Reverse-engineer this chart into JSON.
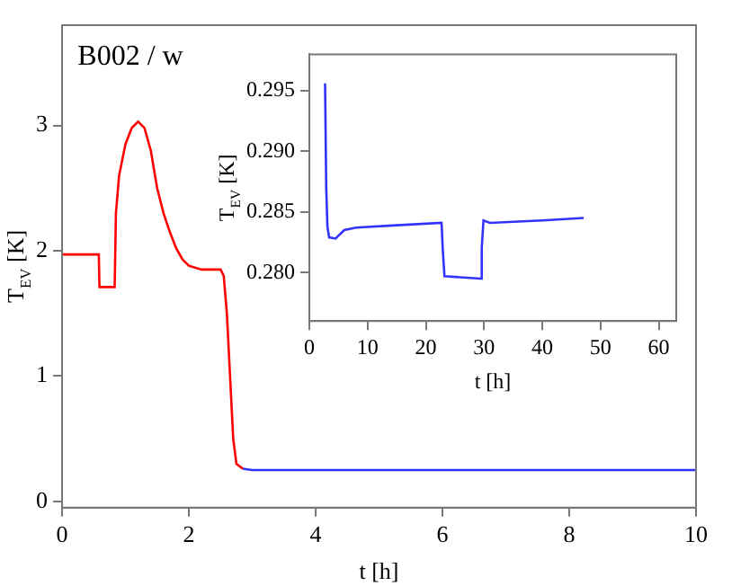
{
  "chart_data": [
    {
      "type": "line",
      "title": "B002 / w",
      "xlabel": "t [h]",
      "ylabel": "T$_{EV}$ [K]",
      "xlim": [
        0,
        10
      ],
      "ylim": [
        -0.05,
        3.8
      ],
      "xticks": [
        0,
        2,
        4,
        6,
        8,
        10
      ],
      "yticks": [
        0,
        1,
        2,
        3
      ],
      "series": [
        {
          "color": "#ff0000",
          "x": [
            0,
            0.58,
            0.59,
            0.83,
            0.85,
            0.9,
            1.0,
            1.1,
            1.2,
            1.3,
            1.4,
            1.5,
            1.6,
            1.7,
            1.8,
            1.9,
            2.0,
            2.2,
            2.5,
            2.55,
            2.6,
            2.65,
            2.7,
            2.75,
            2.85
          ],
          "values": [
            1.97,
            1.97,
            1.71,
            1.71,
            2.3,
            2.6,
            2.85,
            2.98,
            3.03,
            2.98,
            2.8,
            2.5,
            2.3,
            2.15,
            2.02,
            1.93,
            1.88,
            1.85,
            1.85,
            1.8,
            1.5,
            1.0,
            0.5,
            0.3,
            0.26
          ]
        },
        {
          "color": "#3333ff",
          "x": [
            2.85,
            3,
            10
          ],
          "values": [
            0.26,
            0.25,
            0.25
          ]
        }
      ]
    },
    {
      "type": "line",
      "xlabel": "t [h]",
      "ylabel": "T$_{EV}$ [K]",
      "xlim": [
        0,
        63
      ],
      "ylim": [
        0.276,
        0.298
      ],
      "xticks": [
        0,
        10,
        20,
        30,
        40,
        50,
        60
      ],
      "yticks": [
        {
          "value": 0.28,
          "label": "0.280"
        },
        0.285,
        {
          "value": 0.29,
          "label": "0.290"
        },
        0.295
      ],
      "series": [
        {
          "color": "#3333ff",
          "x": [
            2.7,
            2.9,
            3.1,
            3.4,
            4.5,
            6,
            8,
            15,
            22.7,
            22.9,
            23.2,
            29.4,
            29.6,
            29.9,
            31,
            40,
            47.1
          ],
          "values": [
            0.2956,
            0.287,
            0.2838,
            0.2829,
            0.2828,
            0.2835,
            0.2837,
            0.2839,
            0.2841,
            0.282,
            0.2797,
            0.2795,
            0.282,
            0.2843,
            0.2841,
            0.2843,
            0.2845
          ]
        }
      ]
    }
  ]
}
